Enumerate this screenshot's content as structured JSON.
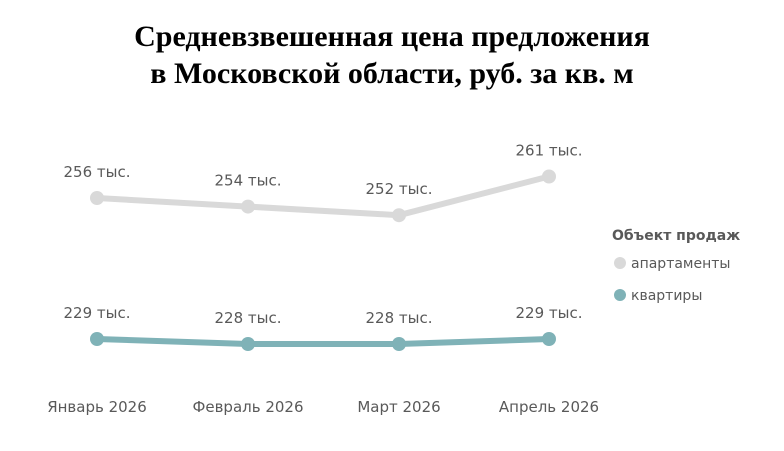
{
  "title": {
    "line1": "Средневзвешенная цена предложения",
    "line2": "в Московской области, руб. за кв. м"
  },
  "legend": {
    "title": "Объект продаж",
    "placement": "right"
  },
  "chart_data": {
    "type": "line",
    "title": "Средневзвешенная цена предложения в Московской области, руб. за кв. м",
    "categories": [
      "Январь 2026",
      "Февраль 2026",
      "Март 2026",
      "Апрель 2026"
    ],
    "series": [
      {
        "name": "апартаменты",
        "color": "#d9d9d9",
        "values": [
          256,
          254,
          252,
          261
        ],
        "labels": [
          "256 тыс.",
          "254 тыс.",
          "252 тыс.",
          "261 тыс."
        ]
      },
      {
        "name": "квартиры",
        "color": "#7fb2b7",
        "values": [
          229,
          228,
          228,
          229
        ],
        "labels": [
          "229 тыс.",
          "228 тыс.",
          "228 тыс.",
          "229 тыс."
        ]
      }
    ],
    "unit": "тыс. руб.",
    "grid": false,
    "axis_lines": false
  }
}
